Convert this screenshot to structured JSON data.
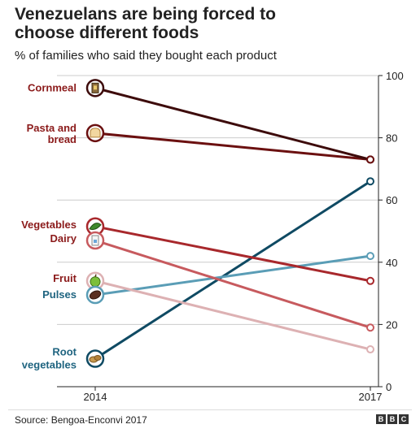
{
  "title": "Venezuelans are being forced to choose different foods",
  "subtitle": "% of families who said they bought each product",
  "source": "Source: Bengoa-Enconvi 2017",
  "logo": [
    "B",
    "B",
    "C"
  ],
  "chart_data": {
    "type": "line",
    "x": [
      "2014",
      "2017"
    ],
    "ylim": [
      0,
      100
    ],
    "yticks": [
      0,
      20,
      40,
      60,
      80,
      100
    ],
    "grid": true,
    "series": [
      {
        "name": "Cornmeal",
        "values": [
          96,
          73
        ],
        "color": "#3d0b0b",
        "label_color": "#8b1a1a",
        "icon": "cornmeal-icon"
      },
      {
        "name": "Pasta and bread",
        "values": [
          81.5,
          73
        ],
        "color": "#6b1010",
        "label_color": "#8b1a1a",
        "icon": "bread-icon"
      },
      {
        "name": "Vegetables",
        "values": [
          51.5,
          34
        ],
        "color": "#a8282c",
        "label_color": "#8b1a1a",
        "icon": "vegetable-icon"
      },
      {
        "name": "Dairy",
        "values": [
          47,
          19
        ],
        "color": "#c75a5e",
        "label_color": "#8b1a1a",
        "icon": "milk-icon"
      },
      {
        "name": "Fruit",
        "values": [
          34,
          12
        ],
        "color": "#ddb1b3",
        "label_color": "#8b1a1a",
        "icon": "apple-icon"
      },
      {
        "name": "Pulses",
        "values": [
          29.5,
          42
        ],
        "color": "#5a9db6",
        "label_color": "#1f6480",
        "icon": "bean-icon"
      },
      {
        "name": "Root vegetables",
        "values": [
          9,
          66
        ],
        "color": "#0f4a63",
        "label_color": "#1f6480",
        "icon": "potato-icon"
      }
    ]
  }
}
